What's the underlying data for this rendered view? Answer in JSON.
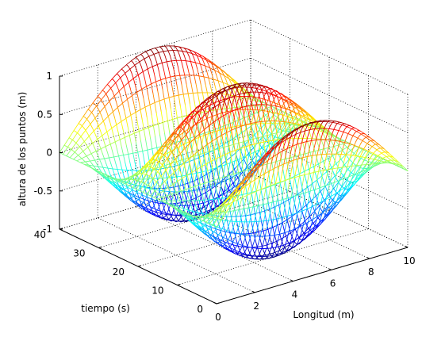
{
  "chart_data": {
    "type": "surface",
    "title": "",
    "xlabel": "Longitud (m)",
    "ylabel": "tiempo (s)",
    "zlabel": "altura de los puntos (m)",
    "xlim": [
      0,
      10
    ],
    "ylim": [
      0,
      40
    ],
    "zlim": [
      -1,
      1
    ],
    "x_ticks": [
      "0",
      "2",
      "4",
      "6",
      "8",
      "10"
    ],
    "y_ticks": [
      "0",
      "10",
      "20",
      "30",
      "40"
    ],
    "z_ticks": [
      "-1",
      "-0.5",
      "0",
      "0.5",
      "1"
    ],
    "grid": true,
    "colormap": "jet",
    "wave_amplitude": 1,
    "wave_period_time": 20,
    "surface_samples": {
      "description": "z(x,t) = sin(pi*x/10) * cos(2*pi*t/20), sampled on the mesh",
      "x": [
        0,
        2,
        4,
        5,
        6,
        8,
        10
      ],
      "t": [
        0,
        5,
        10,
        15,
        20,
        25,
        30,
        35,
        40
      ],
      "z_at_x5": [
        1,
        0,
        -1,
        0,
        1,
        0,
        -1,
        0,
        1
      ]
    }
  }
}
